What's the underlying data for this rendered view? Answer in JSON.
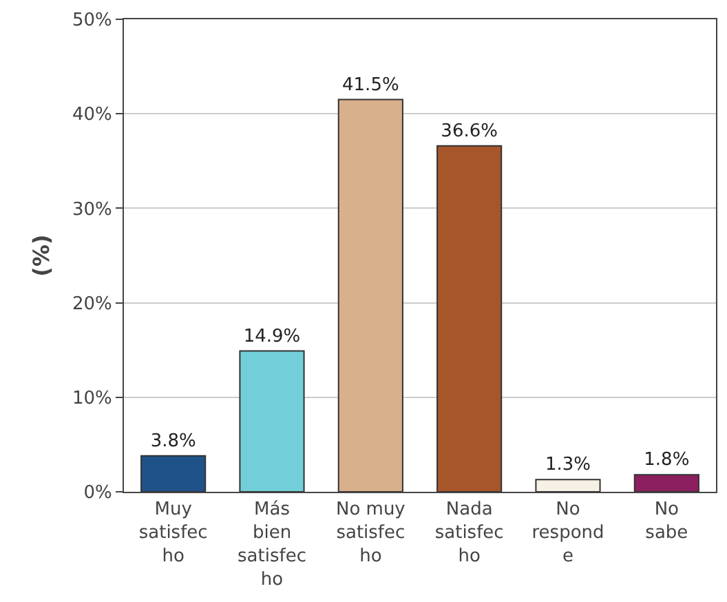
{
  "chart_data": {
    "type": "bar",
    "ylabel": "(%)",
    "categories": [
      "Muy\nsatisfec\nho",
      "Más\nbien\nsatisfec\nho",
      "No muy\nsatisfec\nho",
      "Nada\nsatisfec\nho",
      "No\nrespond\ne",
      "No\nsabe"
    ],
    "values": [
      3.8,
      14.9,
      41.5,
      36.6,
      1.3,
      1.8
    ],
    "value_labels": [
      "3.8%",
      "14.9%",
      "41.5%",
      "36.6%",
      "1.3%",
      "1.8%"
    ],
    "colors": [
      "#1f5289",
      "#72cfd9",
      "#d9b08c",
      "#a6562a",
      "#f6f1e4",
      "#8c1f60"
    ],
    "ylim": [
      0,
      50
    ],
    "yticks": [
      {
        "value": 0,
        "label": "0%"
      },
      {
        "value": 10,
        "label": "10%"
      },
      {
        "value": 20,
        "label": "20%"
      },
      {
        "value": 30,
        "label": "30%"
      },
      {
        "value": 40,
        "label": "40%"
      },
      {
        "value": 50,
        "label": "50%"
      }
    ],
    "grid": "y"
  }
}
